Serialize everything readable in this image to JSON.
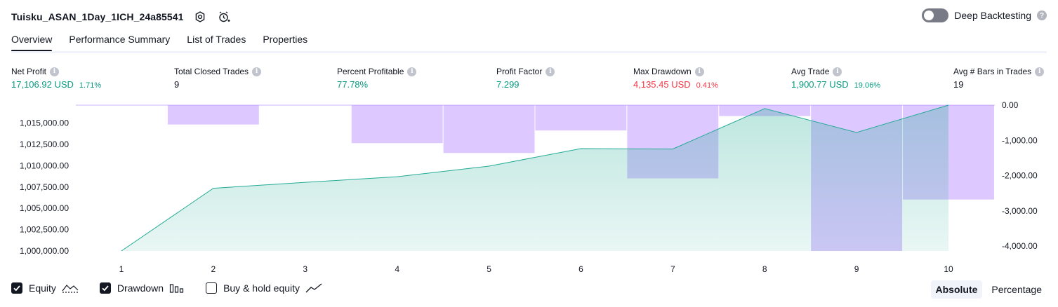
{
  "header": {
    "strategy_name": "Tuisku_ASAN_1Day_1ICH_24a85541",
    "settings_icon": "gear-icon",
    "alert_icon": "alarm-clock-plus-icon",
    "deep_backtesting_label": "Deep Backtesting",
    "deep_backtesting_on": false
  },
  "tabs": [
    {
      "label": "Overview",
      "active": true
    },
    {
      "label": "Performance Summary",
      "active": false
    },
    {
      "label": "List of Trades",
      "active": false
    },
    {
      "label": "Properties",
      "active": false
    }
  ],
  "metrics": [
    {
      "label": "Net Profit",
      "value": "17,106.92 USD",
      "pct": "1.71%",
      "tone": "green"
    },
    {
      "label": "Total Closed Trades",
      "value": "9",
      "pct": "",
      "tone": "dark"
    },
    {
      "label": "Percent Profitable",
      "value": "77.78%",
      "pct": "",
      "tone": "green"
    },
    {
      "label": "Profit Factor",
      "value": "7.299",
      "pct": "",
      "tone": "green"
    },
    {
      "label": "Max Drawdown",
      "value": "4,135.45 USD",
      "pct": "0.41%",
      "tone": "red"
    },
    {
      "label": "Avg Trade",
      "value": "1,900.77 USD",
      "pct": "19.06%",
      "tone": "green"
    },
    {
      "label": "Avg # Bars in Trades",
      "value": "19",
      "pct": "",
      "tone": "dark"
    }
  ],
  "chart_data": {
    "type": "line",
    "x": [
      1,
      2,
      3,
      4,
      5,
      6,
      7,
      8,
      9,
      10
    ],
    "series": [
      {
        "name": "Equity",
        "axis": "left",
        "values": [
          1000000,
          1007350,
          1008050,
          1008700,
          1009950,
          1012000,
          1011950,
          1016700,
          1013900,
          1017100
        ]
      },
      {
        "name": "Drawdown",
        "axis": "right",
        "kind": "bar",
        "values": [
          0,
          -550,
          0,
          -1080,
          -1360,
          -720,
          -2080,
          -310,
          -4140,
          -2680
        ]
      }
    ],
    "left_axis": {
      "min": 1000000,
      "max": 1017100,
      "ticks": [
        "1,000,000.00",
        "1,002,500.00",
        "1,005,000.00",
        "1,007,500.00",
        "1,010,000.00",
        "1,012,500.00",
        "1,015,000.00"
      ],
      "tick_values": [
        1000000,
        1002500,
        1005000,
        1007500,
        1010000,
        1012500,
        1015000
      ]
    },
    "right_axis": {
      "min": -4000,
      "max": 0,
      "ticks": [
        "0.00",
        "-1,000.00",
        "-2,000.00",
        "-3,000.00",
        "-4,000.00"
      ],
      "tick_values": [
        0,
        -1000,
        -2000,
        -3000,
        -4000
      ]
    },
    "x_ticks": [
      "1",
      "2",
      "3",
      "4",
      "5",
      "6",
      "7",
      "8",
      "9",
      "10"
    ],
    "colors": {
      "equity_line": "#22ab94",
      "equity_fill": "#22ab94",
      "drawdown": "#b388ff"
    },
    "grid": false
  },
  "legend": [
    {
      "label": "Equity",
      "checked": true,
      "icon": "equity-line-icon"
    },
    {
      "label": "Drawdown",
      "checked": true,
      "icon": "drawdown-bars-icon"
    },
    {
      "label": "Buy & hold equity",
      "checked": false,
      "icon": "buy-hold-line-icon"
    }
  ],
  "mode": [
    {
      "label": "Absolute",
      "active": true
    },
    {
      "label": "Percentage",
      "active": false
    }
  ]
}
